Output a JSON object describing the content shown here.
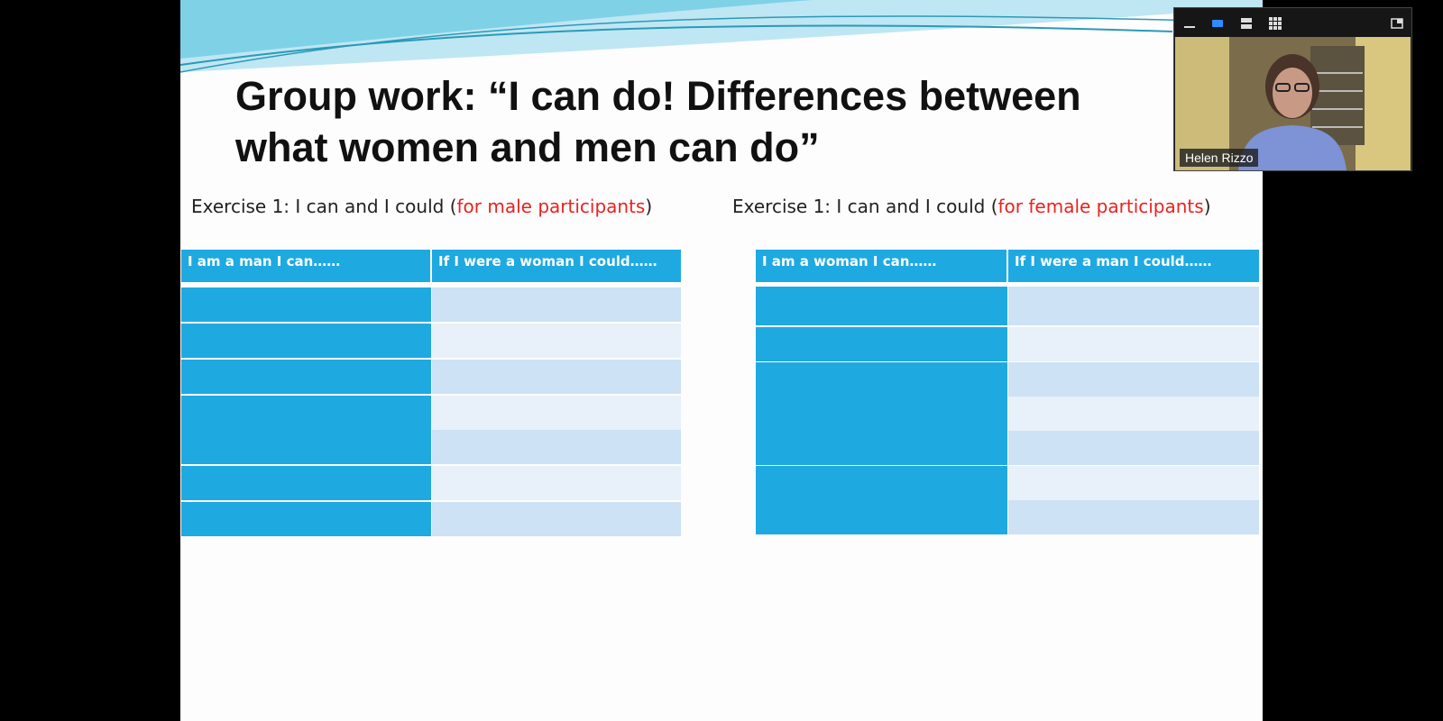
{
  "slide": {
    "title": "Group work: “I can do! Differences between what women and men can do”",
    "exercise_left": {
      "prefix": "Exercise 1: I can and I could (",
      "highlight": "for male participants",
      "suffix": ")"
    },
    "exercise_right": {
      "prefix": "Exercise 1: I can and I could (",
      "highlight": "for female participants",
      "suffix": ")"
    },
    "table_left": {
      "col1": "I am a man I can……",
      "col2": "If I were a woman I could……",
      "rows": 7
    },
    "table_right": {
      "col1": "I am a woman I can……",
      "col2": "If I were a man I could……",
      "rows": 7
    }
  },
  "video_panel": {
    "participant_name": "Helen Rizzo",
    "controls": [
      "minimize-icon",
      "speaker-view-icon",
      "strip-view-icon",
      "gallery-view-icon",
      "pop-out-icon"
    ]
  },
  "colors": {
    "table_header": "#1fa9e1",
    "row_light": "#cde2f4",
    "row_lighter": "#e8f0f9",
    "highlight_red": "#e8231f"
  }
}
